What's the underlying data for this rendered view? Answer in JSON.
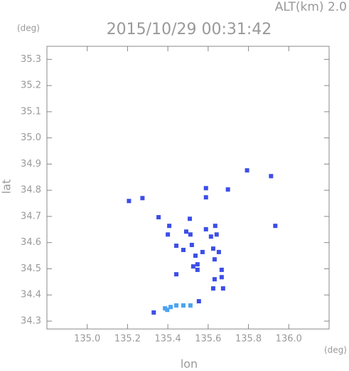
{
  "chart_data": {
    "type": "scatter",
    "title": "2015/10/29 00:31:42",
    "subtitle": "ALT(km) 2.0",
    "y_unit": "(deg)",
    "x_unit": "(deg)",
    "xlabel": "lon",
    "ylabel": "lat",
    "xlim": [
      134.8,
      136.2
    ],
    "ylim": [
      34.27,
      35.35
    ],
    "xticks": [
      {
        "value": 135.0,
        "label": "135.0"
      },
      135.2,
      135.4,
      135.6,
      135.8,
      {
        "value": 136.0,
        "label": "136.0"
      }
    ],
    "yticks": [
      {
        "value": 34.3,
        "label": "34.3"
      },
      34.4,
      34.5,
      34.6,
      34.7,
      34.8,
      34.9,
      {
        "value": 35.0,
        "label": "35.0"
      },
      35.1,
      35.2,
      35.3
    ],
    "series": [
      {
        "color": "#3c4ee6",
        "x": [
          135.207,
          135.274,
          135.354,
          135.407,
          135.4,
          135.442,
          135.477,
          135.509,
          135.491,
          135.512,
          135.519,
          135.537,
          135.526,
          135.547,
          135.572,
          135.589,
          135.614,
          135.635,
          135.642,
          135.625,
          135.632,
          135.653,
          135.589,
          135.589,
          135.698,
          135.793,
          135.912,
          135.933,
          135.442,
          135.547,
          135.632,
          135.667,
          135.667,
          135.625,
          135.674,
          135.554,
          135.33
        ],
        "values": [
          34.759,
          34.77,
          34.697,
          34.664,
          34.631,
          34.588,
          34.572,
          34.691,
          34.642,
          34.631,
          34.591,
          34.55,
          34.509,
          34.517,
          34.564,
          34.651,
          34.623,
          34.664,
          34.631,
          34.577,
          34.536,
          34.564,
          34.808,
          34.773,
          34.803,
          34.876,
          34.854,
          34.664,
          34.479,
          34.496,
          34.46,
          34.496,
          34.468,
          34.425,
          34.425,
          34.376,
          34.333
        ]
      },
      {
        "color": "#4aa3f2",
        "x": [
          135.386,
          135.414,
          135.442,
          135.477,
          135.512,
          135.397
        ],
        "values": [
          34.349,
          34.354,
          34.36,
          34.36,
          34.36,
          34.343
        ]
      }
    ]
  }
}
